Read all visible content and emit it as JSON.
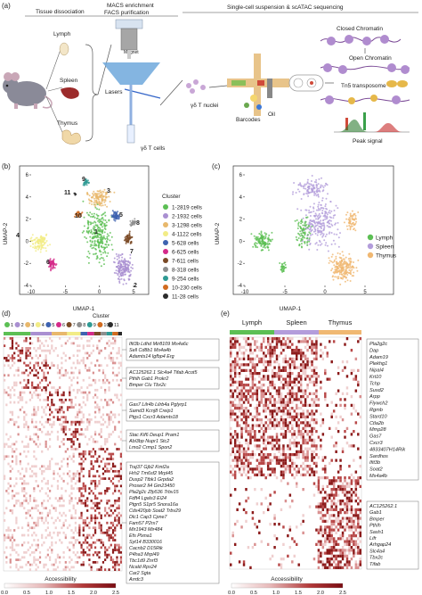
{
  "panels": {
    "a": "(a)",
    "b": "(b)",
    "c": "(c)",
    "d": "(d)",
    "e": "(e)"
  },
  "panel_a": {
    "tissue_dissociation": "Tissue dissociation",
    "macs_line1": "MACS enrichment",
    "macs_line2": "FACS purification",
    "scatac_title": "Single-cell suspension & scATAC sequencing",
    "lymph": "Lymph",
    "spleen": "Spleen",
    "thymus": "Thymus",
    "magnet": "Magnet",
    "lasers": "Lasers",
    "gd_nuclei": "γδ T nuclei",
    "gd_cells": "γδ T cells",
    "barcodes": "Barcodes",
    "oil": "Oil",
    "closed_chromatin": "Closed Chromatin",
    "open_chromatin": "Open Chromatin",
    "tn5": "Tn5 transposome",
    "peak_signal": "Peak signal"
  },
  "panel_b": {
    "ylabel": "UMAP-2",
    "xlabel": "UMAP-1",
    "legend_title": "Cluster",
    "xticks": [
      "-10",
      "-5",
      "0",
      "5"
    ],
    "yticks": [
      "6",
      "4",
      "2",
      "0",
      "-2",
      "-4"
    ],
    "clusters": [
      {
        "id": "1",
        "label": "1-2819  cells",
        "color": "#5cbf54"
      },
      {
        "id": "2",
        "label": "2-1932  cells",
        "color": "#a98fd1"
      },
      {
        "id": "3",
        "label": "3-1298  cells",
        "color": "#e8b86c"
      },
      {
        "id": "4",
        "label": "4-1122  cells",
        "color": "#f2ec86"
      },
      {
        "id": "5",
        "label": "5-628  cells",
        "color": "#3e63b0"
      },
      {
        "id": "6",
        "label": "6-625  cells",
        "color": "#d42a8a"
      },
      {
        "id": "7",
        "label": "7-611  cells",
        "color": "#7a4a26"
      },
      {
        "id": "8",
        "label": "8-318  cells",
        "color": "#8e8e8e"
      },
      {
        "id": "9",
        "label": "9-254  cells",
        "color": "#2e9a93"
      },
      {
        "id": "10",
        "label": "10-230  cells",
        "color": "#d16b1f"
      },
      {
        "id": "11",
        "label": "11-28  cells",
        "color": "#2b2b2b"
      }
    ]
  },
  "panel_c": {
    "ylabel": "UMAP-2",
    "xlabel": "UMAP-1",
    "xticks": [
      "-10",
      "-5",
      "0",
      "5"
    ],
    "yticks": [
      "6",
      "4",
      "2",
      "0",
      "-2",
      "-4"
    ],
    "tissues": [
      {
        "label": "Lymph",
        "color": "#5cbf54"
      },
      {
        "label": "Spleen",
        "color": "#b39ddb"
      },
      {
        "label": "Thymus",
        "color": "#f0b872"
      }
    ]
  },
  "panel_d": {
    "legend_title": "Cluster",
    "scale_title": "Accessibility",
    "scale_ticks": [
      "0.0",
      "0.5",
      "1.0",
      "1.5",
      "2.0",
      "2.5"
    ],
    "gene_blocks": [
      [
        "Ifit3b     Ldhd     Mir8109   Ms4a6c",
        "Sell       Cd8b1    Ms4a4b",
        "Adamts14   Igfbp4   Erg"
      ],
      [
        "AC125262.1  Slc4a4  Tifab     Acot5",
        "Pthlh   Gab1   Prokr2",
        "Bmper   Clu   Tbx2c"
      ],
      [
        "Gas7    Lilr4b   Lilrb4a   Pglyrp1",
        "Samd3   Kcnj8   Creip1",
        "Ptgs1   Cxcr3   Adamts18"
      ],
      [
        "Stac   Kif6    Deup1   Pram1",
        "Abi3bp   Nupr1   Stc2",
        "Lmo2   Crmp1   Spon2"
      ],
      [
        "Traj37   Gjb2     Kmt2a",
        "Hrh2     Tm6sf2   Mrpl45",
        "Dusp2    Ttbk1    Grpda2",
        "Proser2  Il4      Gm23450",
        "Pla2g2c  Zfp536   Trbv15",
        "Fdft4    Lgals3   Ei24",
        "Ptgn5    S1pr5    Snora16a",
        "Cds420pb Soat2    Trbv29",
        "Dlc1     Cap3     Cpne7",
        "Fam57    P2rx7",
        "Mir1943  Mir484",
        "Efs      Plxna1",
        "Syt14    B330016",
        "Cacnb2   D15Rik",
        "P4ha3    Mrpl49",
        "Tbc1d9   Znrf3",
        "Ncald    Rps24",
        "Car2     Sgta",
        "         Arrdc3"
      ]
    ]
  },
  "panel_e": {
    "groups": [
      {
        "label": "Lymph",
        "color": "#5cbf54"
      },
      {
        "label": "Spleen",
        "color": "#b39ddb"
      },
      {
        "label": "Thymus",
        "color": "#f0b872"
      }
    ],
    "genes_top": [
      "Pla2g2c",
      "Dap",
      "Adam19",
      "Plekhg1",
      "Nipal4",
      "Krt10",
      "Tchp",
      "Susd2",
      "Arpp",
      "Flywch2",
      "Rgmb",
      "Stard10",
      "Ctla2b",
      "Mmp28",
      "Gas7",
      "Cxcr3",
      "4833407H14Rik",
      "Sardhos",
      "Ifit3b",
      "Soat2",
      "Ms4a4b"
    ],
    "genes_bottom": [
      "AC125262.1",
      "Gab1",
      "Bmper",
      "Pthlh",
      "Sash1",
      "Lifr",
      "Arhgap24",
      "Slc4a4",
      "Tbx2c",
      "Tifab"
    ],
    "scale_title": "Accessibility",
    "scale_ticks": [
      "0.0",
      "0.5",
      "1.0",
      "1.5",
      "2.0",
      "2.5"
    ]
  }
}
